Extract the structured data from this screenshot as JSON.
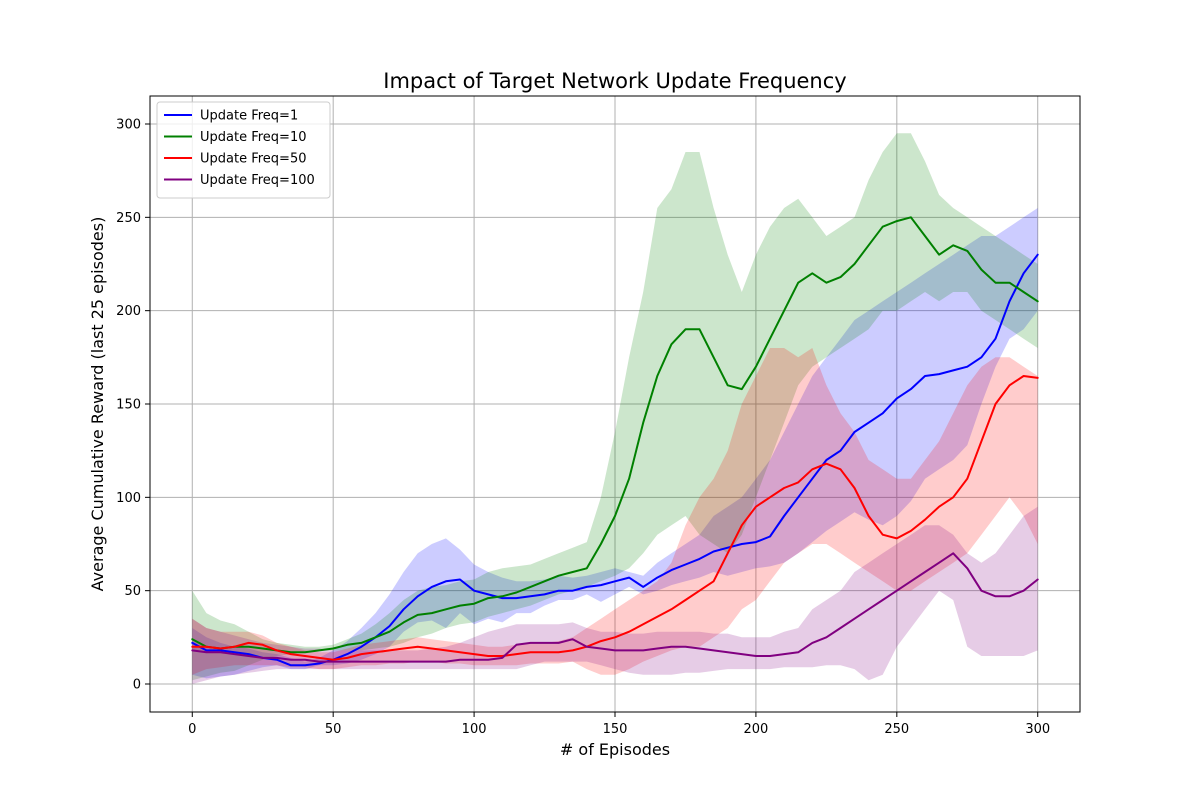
{
  "chart_data": {
    "type": "line",
    "title": "Impact of Target Network Update Frequency",
    "xlabel": "# of Episodes",
    "ylabel": "Average Cumulative Reward (last 25 episodes)",
    "xlim": [
      -15,
      315
    ],
    "ylim": [
      -15,
      315
    ],
    "xticks": [
      0,
      50,
      100,
      150,
      200,
      250,
      300
    ],
    "yticks": [
      0,
      50,
      100,
      150,
      200,
      250,
      300
    ],
    "grid": true,
    "legend_position": "top-left",
    "series": [
      {
        "name": "Update Freq=1",
        "color": "#0000ff",
        "x": [
          0,
          5,
          10,
          15,
          20,
          25,
          30,
          35,
          40,
          45,
          50,
          55,
          60,
          65,
          70,
          75,
          80,
          85,
          90,
          95,
          100,
          105,
          110,
          115,
          120,
          125,
          130,
          135,
          140,
          145,
          150,
          155,
          160,
          165,
          170,
          175,
          180,
          185,
          190,
          195,
          200,
          205,
          210,
          215,
          220,
          225,
          230,
          235,
          240,
          245,
          250,
          255,
          260,
          265,
          270,
          275,
          280,
          285,
          290,
          295,
          300
        ],
        "y": [
          22,
          18,
          18,
          17,
          16,
          14,
          13,
          10,
          10,
          11,
          13,
          16,
          20,
          25,
          31,
          40,
          47,
          52,
          55,
          56,
          50,
          48,
          46,
          46,
          47,
          48,
          50,
          50,
          52,
          53,
          55,
          57,
          52,
          57,
          61,
          64,
          67,
          71,
          73,
          75,
          76,
          79,
          90,
          100,
          110,
          120,
          125,
          135,
          140,
          145,
          153,
          158,
          165,
          166,
          168,
          170,
          175,
          185,
          205,
          220,
          230
        ],
        "lower": [
          5,
          3,
          4,
          5,
          7,
          9,
          10,
          8,
          8,
          10,
          10,
          11,
          13,
          16,
          20,
          28,
          33,
          34,
          30,
          38,
          32,
          35,
          33,
          38,
          38,
          42,
          45,
          45,
          48,
          44,
          48,
          52,
          48,
          50,
          53,
          55,
          57,
          60,
          58,
          60,
          62,
          63,
          65,
          70,
          76,
          82,
          87,
          92,
          88,
          85,
          90,
          98,
          110,
          115,
          120,
          128,
          150,
          170,
          185,
          190,
          200
        ],
        "upper": [
          30,
          25,
          22,
          20,
          19,
          17,
          16,
          14,
          12,
          14,
          18,
          23,
          30,
          38,
          48,
          60,
          70,
          75,
          78,
          72,
          64,
          60,
          57,
          55,
          55,
          56,
          58,
          57,
          58,
          60,
          62,
          60,
          58,
          65,
          70,
          75,
          80,
          90,
          95,
          100,
          110,
          120,
          135,
          150,
          165,
          175,
          185,
          195,
          200,
          205,
          210,
          215,
          220,
          225,
          230,
          235,
          240,
          240,
          245,
          250,
          255
        ]
      },
      {
        "name": "Update Freq=10",
        "color": "#008000",
        "x": [
          0,
          5,
          10,
          15,
          20,
          25,
          30,
          35,
          40,
          45,
          50,
          55,
          60,
          65,
          70,
          75,
          80,
          85,
          90,
          95,
          100,
          105,
          110,
          115,
          120,
          125,
          130,
          135,
          140,
          145,
          150,
          155,
          160,
          165,
          170,
          175,
          180,
          185,
          190,
          195,
          200,
          205,
          210,
          215,
          220,
          225,
          230,
          235,
          240,
          245,
          250,
          255,
          260,
          265,
          270,
          275,
          280,
          285,
          290,
          295,
          300
        ],
        "y": [
          24,
          20,
          19,
          20,
          20,
          19,
          18,
          17,
          17,
          18,
          19,
          21,
          22,
          25,
          28,
          33,
          37,
          38,
          40,
          42,
          43,
          46,
          47,
          49,
          52,
          55,
          58,
          60,
          62,
          75,
          90,
          110,
          140,
          165,
          182,
          190,
          190,
          175,
          160,
          158,
          170,
          185,
          200,
          215,
          220,
          215,
          218,
          225,
          235,
          245,
          248,
          250,
          240,
          230,
          235,
          232,
          222,
          215,
          215,
          210,
          205
        ],
        "lower": [
          2,
          4,
          6,
          7,
          10,
          13,
          15,
          16,
          17,
          18,
          18,
          18,
          18,
          19,
          20,
          22,
          25,
          27,
          30,
          32,
          33,
          36,
          38,
          40,
          42,
          45,
          48,
          50,
          52,
          55,
          58,
          62,
          70,
          80,
          85,
          90,
          80,
          75,
          70,
          80,
          100,
          120,
          140,
          160,
          170,
          175,
          180,
          185,
          190,
          200,
          200,
          205,
          210,
          205,
          210,
          210,
          200,
          195,
          190,
          185,
          180
        ],
        "upper": [
          50,
          38,
          34,
          32,
          28,
          24,
          22,
          21,
          20,
          20,
          21,
          24,
          27,
          32,
          38,
          45,
          50,
          52,
          53,
          55,
          56,
          60,
          62,
          63,
          64,
          67,
          70,
          73,
          76,
          100,
          135,
          175,
          210,
          255,
          265,
          285,
          285,
          255,
          230,
          210,
          230,
          245,
          255,
          260,
          250,
          240,
          245,
          250,
          270,
          285,
          295,
          295,
          280,
          262,
          255,
          250,
          245,
          240,
          235,
          230,
          225
        ]
      },
      {
        "name": "Update Freq=50",
        "color": "#ff0000",
        "x": [
          0,
          5,
          10,
          15,
          20,
          25,
          30,
          35,
          40,
          45,
          50,
          55,
          60,
          65,
          70,
          75,
          80,
          85,
          90,
          95,
          100,
          105,
          110,
          115,
          120,
          125,
          130,
          135,
          140,
          145,
          150,
          155,
          160,
          165,
          170,
          175,
          180,
          185,
          190,
          195,
          200,
          205,
          210,
          215,
          220,
          225,
          230,
          235,
          240,
          245,
          250,
          255,
          260,
          265,
          270,
          275,
          280,
          285,
          290,
          295,
          300
        ],
        "y": [
          20,
          20,
          19,
          20,
          22,
          21,
          18,
          16,
          15,
          14,
          13,
          14,
          16,
          17,
          18,
          19,
          20,
          19,
          18,
          17,
          16,
          15,
          15,
          16,
          17,
          17,
          17,
          18,
          20,
          23,
          25,
          28,
          32,
          36,
          40,
          45,
          50,
          55,
          70,
          85,
          95,
          100,
          105,
          108,
          115,
          118,
          115,
          105,
          90,
          80,
          78,
          82,
          88,
          95,
          100,
          110,
          130,
          150,
          160,
          165,
          164
        ],
        "lower": [
          5,
          8,
          9,
          10,
          10,
          10,
          10,
          9,
          9,
          8,
          8,
          9,
          10,
          10,
          11,
          11,
          12,
          12,
          11,
          11,
          10,
          10,
          10,
          10,
          11,
          11,
          11,
          12,
          8,
          5,
          5,
          8,
          12,
          15,
          18,
          20,
          20,
          25,
          30,
          40,
          45,
          55,
          65,
          70,
          75,
          75,
          70,
          65,
          60,
          55,
          50,
          50,
          55,
          60,
          65,
          70,
          80,
          90,
          100,
          90,
          75
        ],
        "upper": [
          35,
          30,
          28,
          28,
          28,
          26,
          22,
          20,
          18,
          17,
          17,
          19,
          21,
          22,
          23,
          24,
          25,
          24,
          23,
          22,
          21,
          20,
          20,
          21,
          22,
          22,
          23,
          25,
          30,
          35,
          40,
          45,
          50,
          55,
          65,
          85,
          100,
          110,
          125,
          150,
          165,
          180,
          180,
          175,
          180,
          160,
          145,
          135,
          120,
          115,
          110,
          110,
          120,
          130,
          145,
          160,
          170,
          175,
          175,
          170,
          165
        ]
      },
      {
        "name": "Update Freq=100",
        "color": "#800080",
        "x": [
          0,
          5,
          10,
          15,
          20,
          25,
          30,
          35,
          40,
          45,
          50,
          55,
          60,
          65,
          70,
          75,
          80,
          85,
          90,
          95,
          100,
          105,
          110,
          115,
          120,
          125,
          130,
          135,
          140,
          145,
          150,
          155,
          160,
          165,
          170,
          175,
          180,
          185,
          190,
          195,
          200,
          205,
          210,
          215,
          220,
          225,
          230,
          235,
          240,
          245,
          250,
          255,
          260,
          265,
          270,
          275,
          280,
          285,
          290,
          295,
          300
        ],
        "y": [
          18,
          17,
          17,
          16,
          15,
          14,
          14,
          13,
          13,
          12,
          12,
          12,
          12,
          12,
          12,
          12,
          12,
          12,
          12,
          13,
          13,
          13,
          14,
          21,
          22,
          22,
          22,
          24,
          20,
          19,
          18,
          18,
          18,
          19,
          20,
          20,
          19,
          18,
          17,
          16,
          15,
          15,
          16,
          17,
          22,
          25,
          30,
          35,
          40,
          45,
          50,
          55,
          60,
          65,
          70,
          62,
          50,
          47,
          47,
          50,
          56
        ],
        "lower": [
          0,
          2,
          4,
          5,
          6,
          7,
          8,
          8,
          8,
          8,
          8,
          8,
          8,
          8,
          8,
          8,
          8,
          8,
          8,
          8,
          8,
          8,
          8,
          8,
          10,
          12,
          12,
          12,
          12,
          10,
          8,
          6,
          5,
          5,
          5,
          6,
          6,
          7,
          8,
          8,
          8,
          8,
          9,
          9,
          9,
          10,
          10,
          8,
          2,
          5,
          20,
          30,
          40,
          50,
          45,
          20,
          15,
          15,
          15,
          15,
          18
        ],
        "upper": [
          35,
          30,
          28,
          26,
          24,
          22,
          21,
          20,
          19,
          19,
          18,
          18,
          18,
          18,
          18,
          18,
          18,
          19,
          20,
          22,
          25,
          28,
          30,
          32,
          32,
          32,
          32,
          33,
          30,
          28,
          28,
          27,
          27,
          28,
          28,
          28,
          28,
          27,
          27,
          25,
          25,
          25,
          28,
          30,
          40,
          45,
          50,
          60,
          65,
          70,
          75,
          80,
          85,
          85,
          80,
          70,
          65,
          70,
          80,
          90,
          95
        ]
      }
    ]
  }
}
